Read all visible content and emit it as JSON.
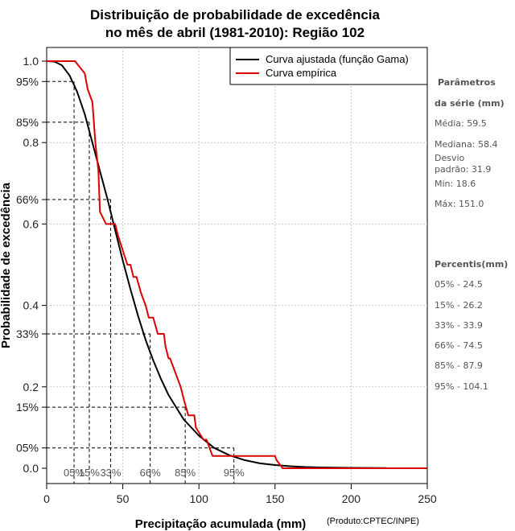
{
  "chart_data": {
    "type": "line",
    "title_line1": "Distribuição de probabilidade de excedência",
    "title_line2": "no mês de abril (1981-2010): Região 102",
    "xlabel": "Precipitação acumulada (mm)",
    "ylabel": "Probabilidade de excedência",
    "credit": "(Produto:CPTEC/INPE)",
    "xlim": [
      0,
      250
    ],
    "ylim": [
      0,
      1
    ],
    "x_ticks": [
      0,
      50,
      100,
      150,
      200,
      250
    ],
    "x_tick_labels": [
      "0",
      "50",
      "100",
      "150",
      "200",
      "250"
    ],
    "y_ticks": [
      {
        "value": 1.0,
        "label": "1.0"
      },
      {
        "value": 0.95,
        "label": "95%"
      },
      {
        "value": 0.85,
        "label": "85%"
      },
      {
        "value": 0.8,
        "label": "0.8"
      },
      {
        "value": 0.66,
        "label": "66%"
      },
      {
        "value": 0.6,
        "label": "0.6"
      },
      {
        "value": 0.4,
        "label": "0.4"
      },
      {
        "value": 0.33,
        "label": "33%"
      },
      {
        "value": 0.2,
        "label": "0.2"
      },
      {
        "value": 0.15,
        "label": "15%"
      },
      {
        "value": 0.05,
        "label": "05%"
      },
      {
        "value": 0.0,
        "label": "0.0"
      }
    ],
    "percentile_markers": [
      {
        "prob": 0.95,
        "x": 18,
        "label": "05%"
      },
      {
        "prob": 0.85,
        "x": 28,
        "label": "15%"
      },
      {
        "prob": 0.66,
        "x": 42,
        "label": "33%"
      },
      {
        "prob": 0.33,
        "x": 68,
        "label": "66%"
      },
      {
        "prob": 0.15,
        "x": 91,
        "label": "85%"
      },
      {
        "prob": 0.05,
        "x": 123,
        "label": "95%"
      }
    ],
    "legend": [
      {
        "name": "Curva ajustada (função Gama)",
        "color": "#000000"
      },
      {
        "name": "Curva empírica",
        "color": "#dd0000"
      }
    ],
    "series": [
      {
        "name": "Curva ajustada (função Gama)",
        "color": "#000000",
        "x": [
          0,
          5,
          10,
          15,
          20,
          25,
          30,
          35,
          40,
          45,
          50,
          55,
          60,
          65,
          70,
          75,
          80,
          85,
          90,
          100,
          110,
          120,
          130,
          140,
          150,
          160,
          170,
          180,
          200,
          223
        ],
        "y": [
          1.0,
          0.999,
          0.99,
          0.965,
          0.925,
          0.87,
          0.8,
          0.73,
          0.66,
          0.585,
          0.51,
          0.44,
          0.375,
          0.315,
          0.265,
          0.22,
          0.18,
          0.15,
          0.12,
          0.08,
          0.05,
          0.032,
          0.02,
          0.012,
          0.008,
          0.005,
          0.003,
          0.002,
          0.001,
          0.0005
        ]
      },
      {
        "name": "Curva empírica",
        "color": "#dd0000",
        "x": [
          0,
          18,
          18.6,
          25,
          27,
          30,
          32,
          34,
          35,
          39,
          45,
          47,
          53,
          55,
          57,
          59,
          62,
          65,
          67,
          70,
          73,
          77,
          78,
          80,
          81,
          85,
          88,
          90,
          93,
          97,
          98,
          103,
          105,
          107,
          109,
          116,
          120,
          123,
          129,
          146,
          150,
          151,
          155,
          250
        ],
        "y": [
          1.0,
          1.0,
          1.0,
          0.97,
          0.93,
          0.9,
          0.8,
          0.73,
          0.63,
          0.6,
          0.6,
          0.57,
          0.5,
          0.5,
          0.47,
          0.47,
          0.43,
          0.4,
          0.37,
          0.37,
          0.33,
          0.33,
          0.3,
          0.27,
          0.27,
          0.23,
          0.2,
          0.17,
          0.13,
          0.13,
          0.1,
          0.07,
          0.07,
          0.05,
          0.03,
          0.03,
          0.03,
          0.03,
          0.03,
          0.03,
          0.03,
          0.02,
          0.0,
          0.0
        ]
      }
    ]
  },
  "sidebar": {
    "params_title_1": "Parâmetros",
    "params_title_2": "da série (mm)",
    "media": "Média: 59.5",
    "mediana": "Mediana: 58.4",
    "desvio_1": "Desvio",
    "desvio_2": "padrão: 31.9",
    "min": "Mín: 18.6",
    "max": "Máx: 151.0",
    "percentis_title": "Percentis(mm)",
    "p05": "05% - 24.5",
    "p15": "15% - 26.2",
    "p33": "33% - 33.9",
    "p66": "66% - 74.5",
    "p85": "85% - 87.9",
    "p95": "95% - 104.1"
  }
}
